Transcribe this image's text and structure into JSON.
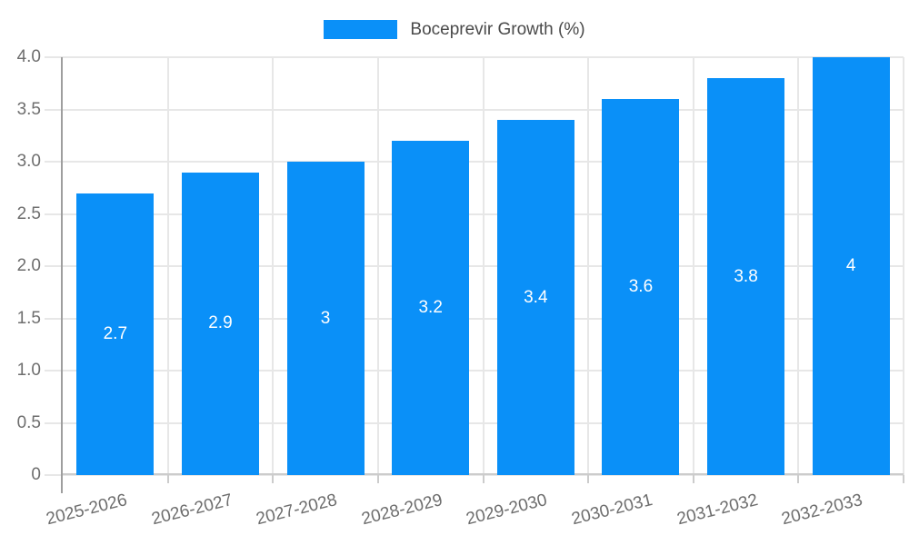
{
  "chart_data": {
    "type": "bar",
    "title": "Boceprevir Growth (%)",
    "legend": {
      "position": "top",
      "label": "Boceprevir Growth (%)"
    },
    "categories": [
      "2025-2026",
      "2026-2027",
      "2027-2028",
      "2028-2029",
      "2029-2030",
      "2030-2031",
      "2031-2032",
      "2032-2033"
    ],
    "series": [
      {
        "name": "Boceprevir Growth (%)",
        "values": [
          2.7,
          2.9,
          3,
          3.2,
          3.4,
          3.6,
          3.8,
          4
        ]
      }
    ],
    "bar_value_labels": [
      "2.7",
      "2.9",
      "3",
      "3.2",
      "3.4",
      "3.6",
      "3.8",
      "4"
    ],
    "xlabel": "",
    "ylabel": "",
    "ylim": [
      0,
      4
    ],
    "yticks": [
      {
        "value": 0,
        "label": "0"
      },
      {
        "value": 0.5,
        "label": "0.5"
      },
      {
        "value": 1,
        "label": "1.0"
      },
      {
        "value": 1.5,
        "label": "1.5"
      },
      {
        "value": 2,
        "label": "2.0"
      },
      {
        "value": 2.5,
        "label": "2.5"
      },
      {
        "value": 3,
        "label": "3.0"
      },
      {
        "value": 3.5,
        "label": "3.5"
      },
      {
        "value": 4,
        "label": "4.0"
      }
    ],
    "grid": {
      "horizontal": true,
      "vertical": true
    },
    "colors": {
      "bar": "#0a90f8",
      "grid": "#e7e7e7",
      "y_axis_line": "#9e9e9e",
      "x_axis_line": "#cccccc",
      "tick": "#cccccc",
      "axis_label": "#6e6e6e",
      "legend_text": "#4a4a4a",
      "bar_label": "#ffffff",
      "background": "#ffffff"
    }
  }
}
